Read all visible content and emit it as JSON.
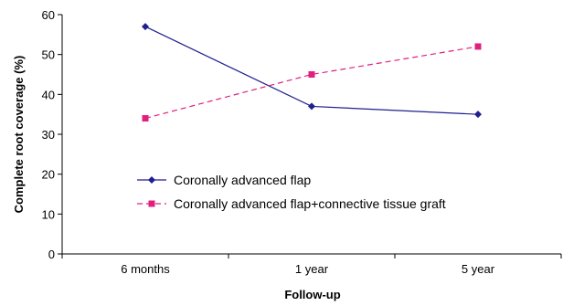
{
  "chart_data": {
    "type": "line",
    "title": "",
    "xlabel": "Follow-up",
    "ylabel": "Complete root coverage (%)",
    "ylim": [
      0,
      60
    ],
    "yticks": [
      0,
      10,
      20,
      30,
      40,
      50,
      60
    ],
    "categories": [
      "6 months",
      "1 year",
      "5 year"
    ],
    "grid": false,
    "legend_position": "center-bottom",
    "series": [
      {
        "name": "Coronally advanced flap",
        "values": [
          57,
          37,
          35
        ],
        "color": "#1f1f8f",
        "marker": "diamond",
        "line_style": "solid"
      },
      {
        "name": "Coronally advanced flap+connective tissue graft",
        "values": [
          34,
          45,
          52
        ],
        "color": "#e0207f",
        "marker": "square",
        "line_style": "dashed"
      }
    ]
  }
}
